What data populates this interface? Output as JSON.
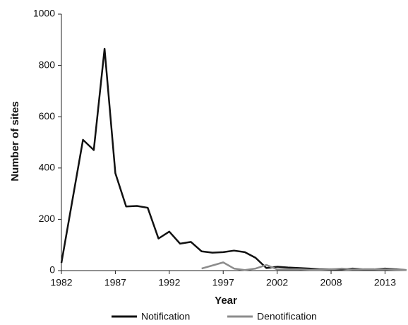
{
  "chart_data": {
    "type": "line",
    "x_label": "Year",
    "y_label": "Number of sites",
    "categories": [
      "1982",
      null,
      null,
      null,
      null,
      "1987",
      null,
      null,
      null,
      null,
      "1992",
      null,
      null,
      null,
      null,
      "1997",
      null,
      null,
      null,
      null,
      "2002",
      null,
      null,
      null,
      null,
      "2008",
      null,
      null,
      null,
      null,
      "2013",
      null,
      null
    ],
    "series": [
      {
        "name": "Notification",
        "color": "#111111",
        "values": [
          30,
          270,
          510,
          470,
          865,
          380,
          250,
          252,
          245,
          125,
          152,
          105,
          112,
          75,
          70,
          72,
          78,
          72,
          50,
          10,
          15,
          12,
          10,
          8,
          5,
          5,
          5,
          8,
          5,
          5,
          8,
          5,
          2
        ]
      },
      {
        "name": "Denotification",
        "color": "#8c8c8c",
        "values": [
          null,
          null,
          null,
          null,
          null,
          null,
          null,
          null,
          null,
          null,
          null,
          null,
          null,
          8,
          20,
          32,
          8,
          2,
          8,
          22,
          5,
          5,
          5,
          3,
          3,
          5,
          8,
          5,
          5,
          5,
          5,
          3,
          2
        ]
      }
    ],
    "ylim": [
      0,
      1000
    ],
    "yticks": [
      0,
      200,
      400,
      600,
      800,
      1000
    ],
    "legend": "bottom"
  }
}
